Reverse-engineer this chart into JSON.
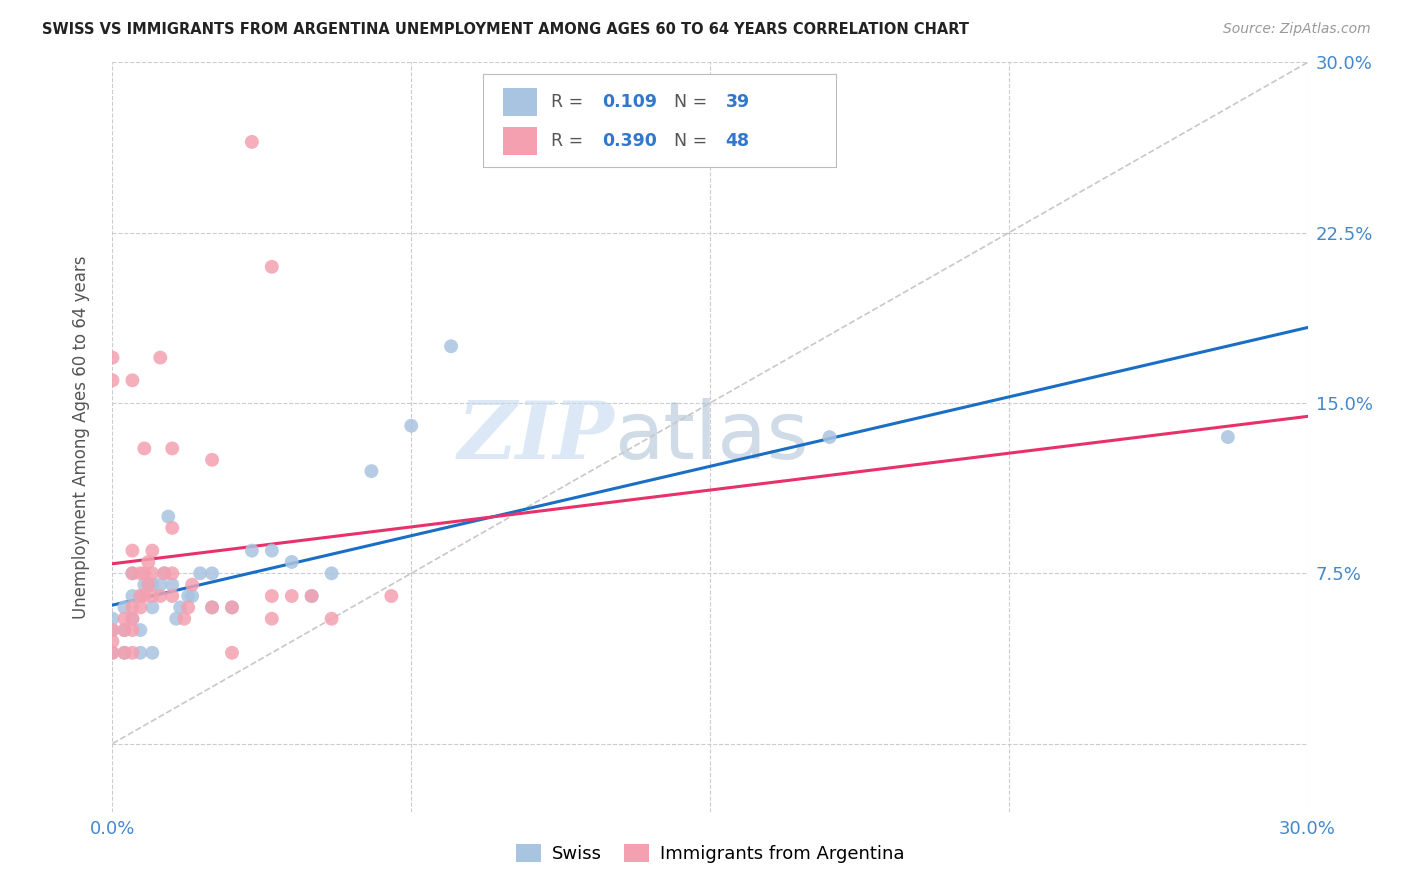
{
  "title": "SWISS VS IMMIGRANTS FROM ARGENTINA UNEMPLOYMENT AMONG AGES 60 TO 64 YEARS CORRELATION CHART",
  "source": "Source: ZipAtlas.com",
  "ylabel": "Unemployment Among Ages 60 to 64 years",
  "xlim": [
    0.0,
    0.3
  ],
  "ylim": [
    -0.03,
    0.3
  ],
  "ytick_positions": [
    0.0,
    0.075,
    0.15,
    0.225,
    0.3
  ],
  "xtick_positions": [
    0.0,
    0.075,
    0.15,
    0.225,
    0.3
  ],
  "ytick_labels_right": [
    "",
    "7.5%",
    "15.0%",
    "22.5%",
    "30.0%"
  ],
  "xtick_labels": [
    "0.0%",
    "",
    "",
    "",
    "30.0%"
  ],
  "watermark_part1": "ZIP",
  "watermark_part2": "atlas",
  "legend_labels": [
    "Swiss",
    "Immigrants from Argentina"
  ],
  "swiss_color": "#a8c4e0",
  "argentina_color": "#f4a0b0",
  "swiss_R": 0.109,
  "swiss_N": 39,
  "argentina_R": 0.39,
  "argentina_N": 48,
  "trend_line_color_swiss": "#1a6fc4",
  "trend_line_color_argentina": "#e8306a",
  "diagonal_line_color": "#c8c8c8",
  "swiss_x": [
    0.0,
    0.0,
    0.0,
    0.003,
    0.003,
    0.003,
    0.005,
    0.005,
    0.005,
    0.007,
    0.007,
    0.007,
    0.008,
    0.009,
    0.01,
    0.01,
    0.01,
    0.012,
    0.013,
    0.014,
    0.015,
    0.016,
    0.017,
    0.019,
    0.02,
    0.022,
    0.025,
    0.025,
    0.03,
    0.035,
    0.04,
    0.045,
    0.05,
    0.055,
    0.065,
    0.075,
    0.085,
    0.18,
    0.28
  ],
  "swiss_y": [
    0.04,
    0.05,
    0.055,
    0.04,
    0.05,
    0.06,
    0.055,
    0.065,
    0.075,
    0.04,
    0.05,
    0.065,
    0.07,
    0.07,
    0.04,
    0.06,
    0.07,
    0.07,
    0.075,
    0.1,
    0.07,
    0.055,
    0.06,
    0.065,
    0.065,
    0.075,
    0.06,
    0.075,
    0.06,
    0.085,
    0.085,
    0.08,
    0.065,
    0.075,
    0.12,
    0.14,
    0.175,
    0.135,
    0.135
  ],
  "argentina_x": [
    0.0,
    0.0,
    0.0,
    0.0,
    0.0,
    0.003,
    0.003,
    0.003,
    0.005,
    0.005,
    0.005,
    0.005,
    0.005,
    0.005,
    0.005,
    0.007,
    0.007,
    0.007,
    0.008,
    0.008,
    0.008,
    0.009,
    0.009,
    0.01,
    0.01,
    0.01,
    0.012,
    0.012,
    0.013,
    0.015,
    0.015,
    0.015,
    0.015,
    0.018,
    0.019,
    0.02,
    0.025,
    0.025,
    0.03,
    0.03,
    0.035,
    0.04,
    0.04,
    0.04,
    0.045,
    0.05,
    0.055,
    0.07
  ],
  "argentina_y": [
    0.04,
    0.045,
    0.05,
    0.16,
    0.17,
    0.04,
    0.05,
    0.055,
    0.04,
    0.05,
    0.055,
    0.06,
    0.075,
    0.085,
    0.16,
    0.06,
    0.065,
    0.075,
    0.065,
    0.075,
    0.13,
    0.07,
    0.08,
    0.065,
    0.075,
    0.085,
    0.065,
    0.17,
    0.075,
    0.065,
    0.075,
    0.095,
    0.13,
    0.055,
    0.06,
    0.07,
    0.06,
    0.125,
    0.04,
    0.06,
    0.265,
    0.055,
    0.065,
    0.21,
    0.065,
    0.065,
    0.055,
    0.065
  ]
}
